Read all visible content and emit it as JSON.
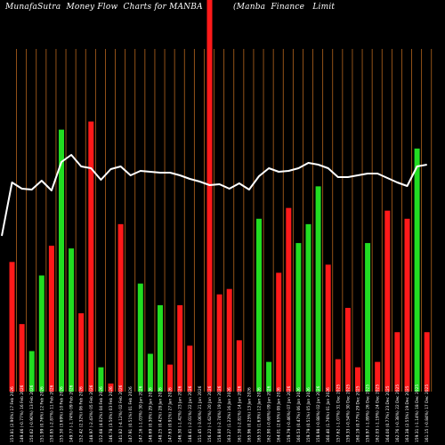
{
  "header": {
    "title_left": "MunafaSutra  Money Flow  Charts for MANBA",
    "title_right": "(Manba  Finance   Limit"
  },
  "colors": {
    "background": "#000000",
    "grid": "#b5651d",
    "up": "#22dd22",
    "down": "#ff1a1a",
    "line": "#ffffff",
    "text": "#ffffff"
  },
  "chart_data": {
    "type": "bar",
    "grid": "vertical lines, brown",
    "y_axis": "no printed scale",
    "bars": {
      "x_labels": [
        "153.81 (2.90%) 17 Feb 2026",
        "149.46 (-0.77%) 16 Feb 2026",
        "150.62 (-0.90%) 13 Feb 2026",
        "151.99 (0.76%) 12 Feb 2026",
        "150.85 (-2.87%) 11 Feb 2026",
        "155.30 (3.69%) 10 Feb 2026",
        "149.77 (-1.74%) 09 Feb 2026",
        "152.42 (2.32%) 06 Feb 2026",
        "148.97 (-2.43%) 05 Feb 2026",
        "152.68 (4.02%) 04 Feb 2026",
        "146.78 (3.50%) 03 Feb 2026",
        "141.82 (-4.12%) 02 Feb 2026",
        "147.91 (0.51%) 01 Feb 2026",
        "147.16 (-1.03%) 30 Jan 2026",
        "148.69 (0.30%) 29 Jan 2026",
        "148.25 (0.42%) 28 Jan 2026",
        "147.63 (0.91%) 27 Jan 2026",
        "146.30 (-1.42%) 23 Jan 2026",
        "148.41 (-2.01%) 22 Jan 2026",
        "151.45 (-3.06%) 21 Jan 2026",
        "156.22 (-1.62%) 20 Jan 2026",
        "158.80 (-2.74%) 19 Jan 2026",
        "163.27 (1.22%) 16 Jan 2026",
        "161.30 (-2.81%) 14 Jan 2026",
        "165.96 (0.25%) 13 Jan 2026",
        "165.55 (1.63%) 12 Jan 2026",
        "162.90 (-0.68%) 09 Jan 2026",
        "164.01 (2.65%) 08 Jan 2026",
        "159.79 (-0.46%) 07 Jan 2026",
        "160.53 (0.47%) 06 Jan 2026",
        "159.79 (0.51%) 05 Jan 2026",
        "158.98 (-0.88%) 02 Jan 2026",
        "160.40 (1.76%) 01 Jan 2026",
        "157.62 (-1.07%) 31 Dec 2025",
        "159.33 (-0.54%) 30 Dec 2025",
        "160.19 (0.77%) 29 Dec 2025",
        "158.97 (-1.89%) 26 Dec 2025",
        "162.03 (-1.19%) 24 Dec 2025",
        "164.00 (0.77%) 23 Dec 2025",
        "162.76 (-0.38%) 22 Dec 2025",
        "163.38 (2.55%) 19 Dec 2025",
        "159.31 (-1.14%) 18 Dec 2025",
        "161.15 (-0.84%) 17 Dec 2025"
      ],
      "values": [
        48,
        25,
        15,
        43,
        54,
        97,
        53,
        29,
        100,
        9,
        3,
        62,
        0,
        40,
        14,
        32,
        10,
        32,
        17,
        0,
        145,
        36,
        38,
        19,
        0,
        64,
        11,
        44,
        68,
        55,
        62,
        76,
        47,
        12,
        31,
        9,
        55,
        11,
        67,
        22,
        64,
        90,
        22
      ],
      "directions": [
        "down",
        "down",
        "up",
        "up",
        "down",
        "up",
        "up",
        "down",
        "down",
        "up",
        "down",
        "down",
        "up",
        "up",
        "up",
        "up",
        "down",
        "down",
        "down",
        "up",
        "down",
        "down",
        "down",
        "down",
        "down",
        "up",
        "up",
        "down",
        "down",
        "up",
        "up",
        "up",
        "down",
        "down",
        "down",
        "down",
        "up",
        "down",
        "down",
        "down",
        "down",
        "up",
        "down"
      ]
    },
    "line": {
      "values": [
        56,
        55.3,
        55.2,
        56.2,
        55.1,
        58.3,
        59.1,
        57.8,
        57.6,
        56.3,
        57.5,
        57.8,
        56.8,
        57.3,
        57.2,
        57.1,
        57.1,
        56.8,
        56.4,
        56.1,
        55.7,
        55.8,
        55.3,
        55.9,
        55.2,
        56.7,
        57.6,
        57.2,
        57.3,
        57.6,
        58.2,
        58,
        57.6,
        56.6,
        56.6,
        56.8,
        57,
        57,
        56.5,
        56,
        55.6,
        57.8,
        58
      ]
    }
  }
}
